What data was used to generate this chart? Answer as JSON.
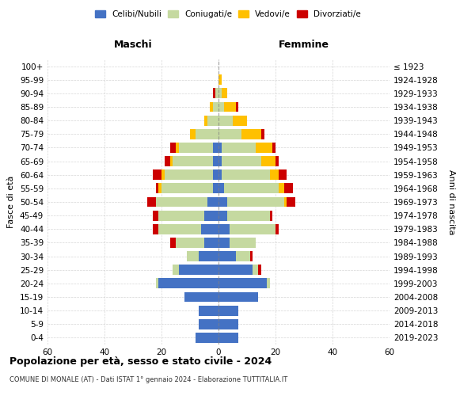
{
  "age_groups": [
    "0-4",
    "5-9",
    "10-14",
    "15-19",
    "20-24",
    "25-29",
    "30-34",
    "35-39",
    "40-44",
    "45-49",
    "50-54",
    "55-59",
    "60-64",
    "65-69",
    "70-74",
    "75-79",
    "80-84",
    "85-89",
    "90-94",
    "95-99",
    "100+"
  ],
  "birth_years": [
    "2019-2023",
    "2014-2018",
    "2009-2013",
    "2004-2008",
    "1999-2003",
    "1994-1998",
    "1989-1993",
    "1984-1988",
    "1979-1983",
    "1974-1978",
    "1969-1973",
    "1964-1968",
    "1959-1963",
    "1954-1958",
    "1949-1953",
    "1944-1948",
    "1939-1943",
    "1934-1938",
    "1929-1933",
    "1924-1928",
    "≤ 1923"
  ],
  "male": {
    "celibi": [
      8,
      7,
      7,
      12,
      21,
      14,
      7,
      5,
      6,
      5,
      4,
      2,
      2,
      2,
      2,
      0,
      0,
      0,
      0,
      0,
      0
    ],
    "coniugati": [
      0,
      0,
      0,
      0,
      1,
      2,
      4,
      10,
      15,
      16,
      18,
      18,
      17,
      14,
      12,
      8,
      4,
      2,
      1,
      0,
      0
    ],
    "vedovi": [
      0,
      0,
      0,
      0,
      0,
      0,
      0,
      0,
      0,
      0,
      0,
      1,
      1,
      1,
      1,
      2,
      1,
      1,
      0,
      0,
      0
    ],
    "divorziati": [
      0,
      0,
      0,
      0,
      0,
      0,
      0,
      2,
      2,
      2,
      3,
      1,
      3,
      2,
      2,
      0,
      0,
      0,
      1,
      0,
      0
    ]
  },
  "female": {
    "nubili": [
      7,
      7,
      7,
      14,
      17,
      12,
      6,
      4,
      4,
      3,
      3,
      2,
      1,
      1,
      1,
      0,
      0,
      0,
      0,
      0,
      0
    ],
    "coniugate": [
      0,
      0,
      0,
      0,
      1,
      2,
      5,
      9,
      16,
      15,
      20,
      19,
      17,
      14,
      12,
      8,
      5,
      2,
      1,
      0,
      0
    ],
    "vedove": [
      0,
      0,
      0,
      0,
      0,
      0,
      0,
      0,
      0,
      0,
      1,
      2,
      3,
      5,
      6,
      7,
      5,
      4,
      2,
      1,
      0
    ],
    "divorziate": [
      0,
      0,
      0,
      0,
      0,
      1,
      1,
      0,
      1,
      1,
      3,
      3,
      3,
      1,
      1,
      1,
      0,
      1,
      0,
      0,
      0
    ]
  },
  "colors": {
    "celibi": "#4472c4",
    "coniugati": "#c5d9a0",
    "vedovi": "#ffc000",
    "divorziati": "#cc0000"
  },
  "title": "Popolazione per età, sesso e stato civile - 2024",
  "subtitle": "COMUNE DI MONALE (AT) - Dati ISTAT 1° gennaio 2024 - Elaborazione TUTTITALIA.IT",
  "xlabel_left": "Maschi",
  "xlabel_right": "Femmine",
  "ylabel_left": "Fasce di età",
  "ylabel_right": "Anni di nascita",
  "xlim": 60,
  "background": "#ffffff",
  "grid_color": "#cccccc"
}
